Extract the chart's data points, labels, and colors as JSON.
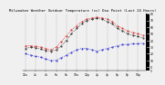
{
  "title": "Milwaukee Weather Outdoor Temperature (vs) Dew Point (Last 24 Hours)",
  "title_fontsize": 2.8,
  "background_color": "#f0f0f0",
  "plot_bg_color": "#f0f0f0",
  "red_line_color": "#cc0000",
  "blue_line_color": "#0000cc",
  "black_line_color": "#000000",
  "grid_color": "#888888",
  "temp_values": [
    32,
    32,
    31,
    30,
    28,
    26,
    30,
    38,
    47,
    56,
    62,
    68,
    72,
    74,
    75,
    74,
    72,
    68,
    62,
    58,
    54,
    52,
    50,
    48
  ],
  "dew_values": [
    20,
    18,
    16,
    15,
    12,
    10,
    10,
    14,
    18,
    22,
    26,
    28,
    28,
    26,
    24,
    26,
    28,
    30,
    32,
    34,
    34,
    35,
    35,
    36
  ],
  "black_values": [
    28,
    30,
    29,
    27,
    25,
    24,
    26,
    32,
    40,
    50,
    58,
    65,
    70,
    72,
    73,
    72,
    68,
    65,
    58,
    54,
    50,
    48,
    46,
    44
  ],
  "ylim": [
    -5,
    80
  ],
  "n_points": 24,
  "tick_fontsize": 2.2,
  "right_ytick_labels": [
    "80",
    "70",
    "60",
    "50",
    "40",
    "30",
    "20",
    "10",
    "0",
    "-5"
  ],
  "right_ytick_positions": [
    80,
    70,
    60,
    50,
    40,
    30,
    20,
    10,
    0,
    -5
  ]
}
